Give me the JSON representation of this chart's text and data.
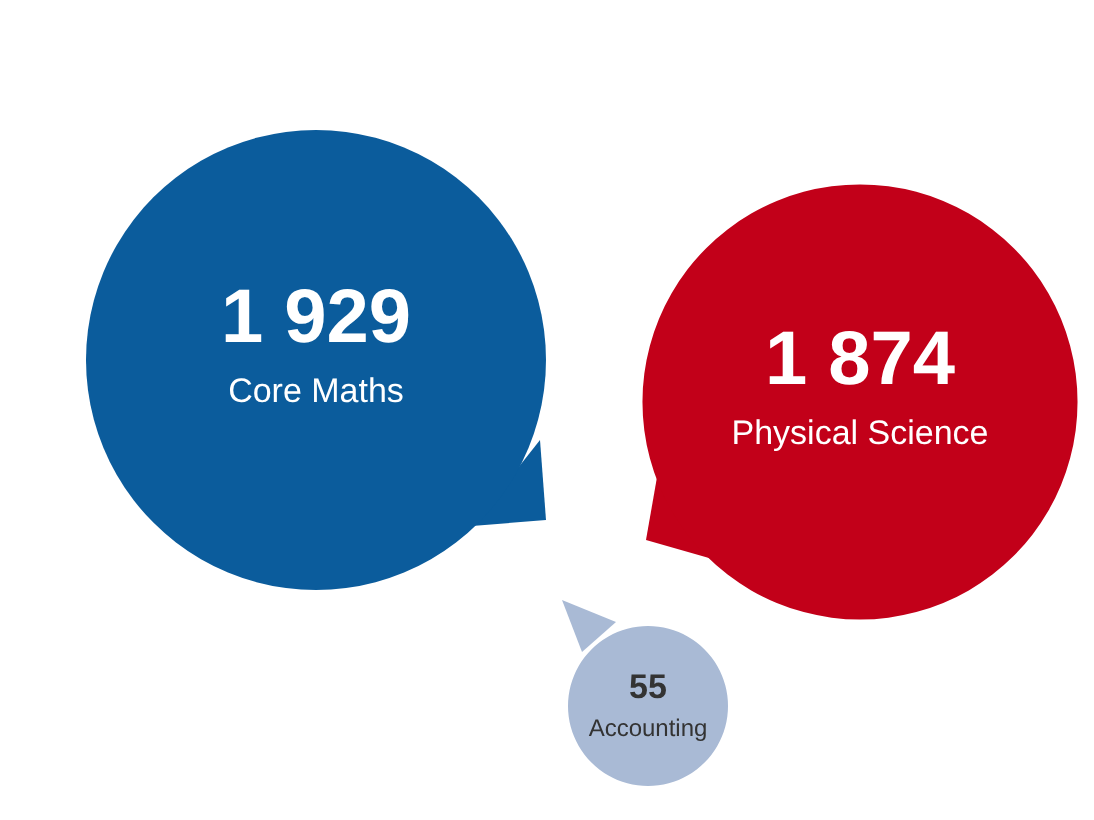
{
  "chart_data": {
    "type": "other",
    "categories": [
      "Core Maths",
      "Physical Science",
      "Accounting"
    ],
    "values": [
      1929,
      1874,
      55
    ],
    "value_labels": [
      "1 929",
      "1 874",
      "55"
    ],
    "colors": [
      "#0b5c9c",
      "#c20019",
      "#a9bad5"
    ]
  }
}
